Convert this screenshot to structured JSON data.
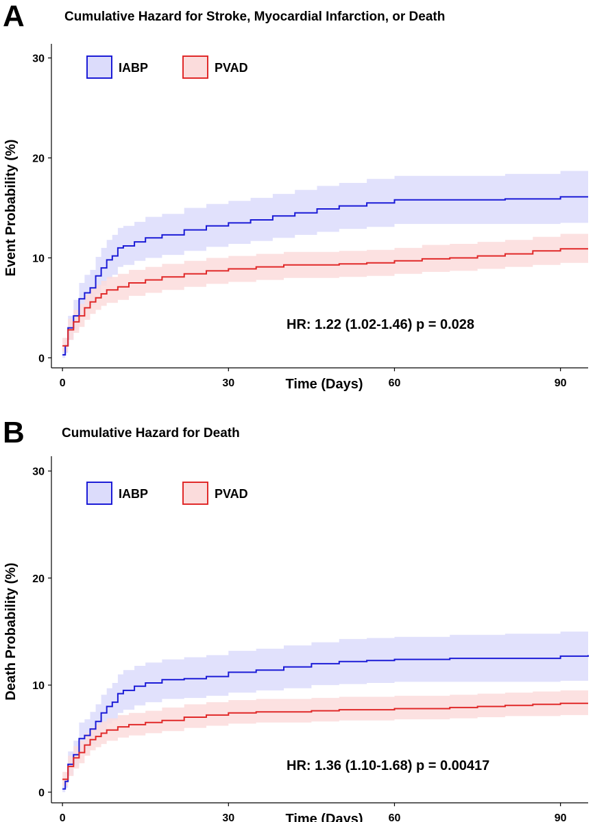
{
  "chart_data": [
    {
      "type": "line",
      "panel_label": "A",
      "title": "Cumulative Hazard for Stroke, Myocardial Infarction, or Death",
      "xlabel": "Time (Days)",
      "ylabel": "Event Probability (%)",
      "xlim": [
        -2,
        95
      ],
      "ylim": [
        -1,
        31
      ],
      "x_ticks": [
        "0",
        "30",
        "60",
        "90"
      ],
      "y_ticks": [
        "0",
        "10",
        "20",
        "30"
      ],
      "legend_position": "top-left",
      "annotation": "HR: 1.22 (1.02-1.46) p = 0.028",
      "colors": {
        "IABP": "#1a1ad6",
        "PVAD": "#e02828",
        "IABP_band": "#dcdcfb",
        "PVAD_band": "#fbdcdc"
      },
      "series": [
        {
          "name": "IABP",
          "x": [
            0,
            0.5,
            1,
            2,
            3,
            4,
            5,
            6,
            7,
            8,
            9,
            10,
            11,
            13,
            15,
            18,
            22,
            26,
            30,
            34,
            38,
            42,
            46,
            50,
            55,
            60,
            70,
            80,
            90,
            95
          ],
          "y": [
            0.3,
            1.2,
            3.0,
            4.2,
            5.9,
            6.5,
            7.0,
            8.2,
            9.0,
            9.8,
            10.2,
            11.0,
            11.2,
            11.6,
            12.0,
            12.3,
            12.8,
            13.2,
            13.5,
            13.8,
            14.2,
            14.5,
            14.9,
            15.2,
            15.5,
            15.8,
            15.8,
            15.9,
            16.1,
            16.1
          ],
          "lower": [
            0.0,
            0.5,
            1.8,
            2.8,
            4.2,
            4.8,
            5.3,
            6.4,
            7.2,
            7.9,
            8.3,
            9.1,
            9.3,
            9.7,
            10.0,
            10.3,
            10.7,
            11.1,
            11.4,
            11.7,
            12.0,
            12.3,
            12.6,
            12.9,
            13.1,
            13.4,
            13.4,
            13.4,
            13.5,
            13.5
          ],
          "upper": [
            1.0,
            2.0,
            4.2,
            5.8,
            7.5,
            8.3,
            8.8,
            10.1,
            11.0,
            11.8,
            12.3,
            13.0,
            13.2,
            13.6,
            14.1,
            14.4,
            15.0,
            15.4,
            15.7,
            16.0,
            16.4,
            16.8,
            17.2,
            17.5,
            17.9,
            18.2,
            18.2,
            18.4,
            18.7,
            18.7
          ]
        },
        {
          "name": "PVAD",
          "x": [
            0,
            0.5,
            1,
            2,
            3,
            4,
            5,
            6,
            7,
            8,
            10,
            12,
            15,
            18,
            22,
            26,
            30,
            35,
            40,
            45,
            50,
            55,
            60,
            65,
            70,
            75,
            80,
            85,
            90,
            95
          ],
          "y": [
            1.2,
            1.2,
            2.8,
            3.6,
            4.2,
            5.0,
            5.6,
            6.0,
            6.4,
            6.8,
            7.1,
            7.5,
            7.8,
            8.1,
            8.4,
            8.7,
            8.9,
            9.1,
            9.3,
            9.3,
            9.4,
            9.5,
            9.7,
            9.9,
            10.0,
            10.2,
            10.4,
            10.7,
            10.9,
            10.9
          ],
          "lower": [
            0.6,
            0.6,
            1.8,
            2.5,
            3.1,
            3.8,
            4.4,
            4.8,
            5.2,
            5.5,
            5.8,
            6.2,
            6.5,
            6.8,
            7.1,
            7.4,
            7.6,
            7.8,
            8.0,
            8.0,
            8.1,
            8.2,
            8.4,
            8.6,
            8.7,
            8.9,
            9.1,
            9.3,
            9.5,
            9.5
          ],
          "upper": [
            2.0,
            2.0,
            3.9,
            4.8,
            5.4,
            6.3,
            6.9,
            7.3,
            7.7,
            8.1,
            8.4,
            8.8,
            9.1,
            9.4,
            9.7,
            10.0,
            10.2,
            10.4,
            10.6,
            10.6,
            10.7,
            10.8,
            11.0,
            11.3,
            11.4,
            11.6,
            11.8,
            12.1,
            12.4,
            12.4
          ]
        }
      ]
    },
    {
      "type": "line",
      "panel_label": "B",
      "title": "Cumulative Hazard for Death",
      "xlabel": "Time (Days)",
      "ylabel": "Death Probability (%)",
      "xlim": [
        -2,
        95
      ],
      "ylim": [
        -1,
        31
      ],
      "x_ticks": [
        "0",
        "30",
        "60",
        "90"
      ],
      "y_ticks": [
        "0",
        "10",
        "20",
        "30"
      ],
      "legend_position": "top-left",
      "annotation": "HR: 1.36 (1.10-1.68) p = 0.00417",
      "colors": {
        "IABP": "#1a1ad6",
        "PVAD": "#e02828",
        "IABP_band": "#dcdcfb",
        "PVAD_band": "#fbdcdc"
      },
      "series": [
        {
          "name": "IABP",
          "x": [
            0,
            0.5,
            1,
            2,
            3,
            4,
            5,
            6,
            7,
            8,
            9,
            10,
            11,
            13,
            15,
            18,
            22,
            26,
            30,
            35,
            40,
            45,
            50,
            55,
            60,
            70,
            80,
            90,
            95
          ],
          "y": [
            0.3,
            1.0,
            2.6,
            3.5,
            5.0,
            5.3,
            5.9,
            6.6,
            7.4,
            8.0,
            8.4,
            9.2,
            9.5,
            9.9,
            10.2,
            10.5,
            10.6,
            10.8,
            11.2,
            11.4,
            11.7,
            12.0,
            12.2,
            12.3,
            12.4,
            12.5,
            12.5,
            12.7,
            12.8
          ],
          "lower": [
            0.0,
            0.4,
            1.6,
            2.4,
            3.7,
            4.0,
            4.5,
            5.1,
            5.8,
            6.4,
            6.7,
            7.4,
            7.7,
            8.1,
            8.4,
            8.7,
            8.8,
            9.0,
            9.3,
            9.5,
            9.7,
            10.0,
            10.1,
            10.2,
            10.3,
            10.3,
            10.3,
            10.4,
            10.4
          ],
          "upper": [
            0.8,
            1.8,
            3.8,
            4.8,
            6.5,
            6.8,
            7.5,
            8.2,
            9.1,
            9.7,
            10.2,
            11.0,
            11.4,
            11.8,
            12.1,
            12.4,
            12.6,
            12.8,
            13.2,
            13.4,
            13.7,
            14.0,
            14.3,
            14.4,
            14.5,
            14.7,
            14.8,
            15.0,
            15.2
          ]
        },
        {
          "name": "PVAD",
          "x": [
            0,
            0.5,
            1,
            2,
            3,
            4,
            5,
            6,
            7,
            8,
            10,
            12,
            15,
            18,
            22,
            26,
            30,
            35,
            40,
            45,
            50,
            55,
            60,
            65,
            70,
            75,
            80,
            85,
            90,
            95
          ],
          "y": [
            1.2,
            1.2,
            2.4,
            3.2,
            3.7,
            4.4,
            4.9,
            5.2,
            5.5,
            5.8,
            6.1,
            6.3,
            6.5,
            6.7,
            7.0,
            7.2,
            7.4,
            7.5,
            7.5,
            7.6,
            7.7,
            7.7,
            7.8,
            7.8,
            7.9,
            8.0,
            8.1,
            8.2,
            8.3,
            8.3
          ],
          "lower": [
            0.6,
            0.6,
            1.5,
            2.2,
            2.7,
            3.4,
            3.9,
            4.2,
            4.5,
            4.8,
            5.1,
            5.3,
            5.5,
            5.7,
            6.0,
            6.2,
            6.4,
            6.5,
            6.5,
            6.6,
            6.7,
            6.7,
            6.8,
            6.8,
            6.9,
            7.0,
            7.1,
            7.1,
            7.2,
            7.2
          ],
          "upper": [
            1.9,
            1.9,
            3.4,
            4.3,
            4.8,
            5.5,
            6.0,
            6.3,
            6.6,
            6.9,
            7.2,
            7.4,
            7.6,
            7.9,
            8.2,
            8.4,
            8.6,
            8.7,
            8.7,
            8.8,
            8.9,
            8.9,
            9.0,
            9.0,
            9.1,
            9.2,
            9.3,
            9.4,
            9.5,
            9.5
          ]
        }
      ]
    }
  ]
}
